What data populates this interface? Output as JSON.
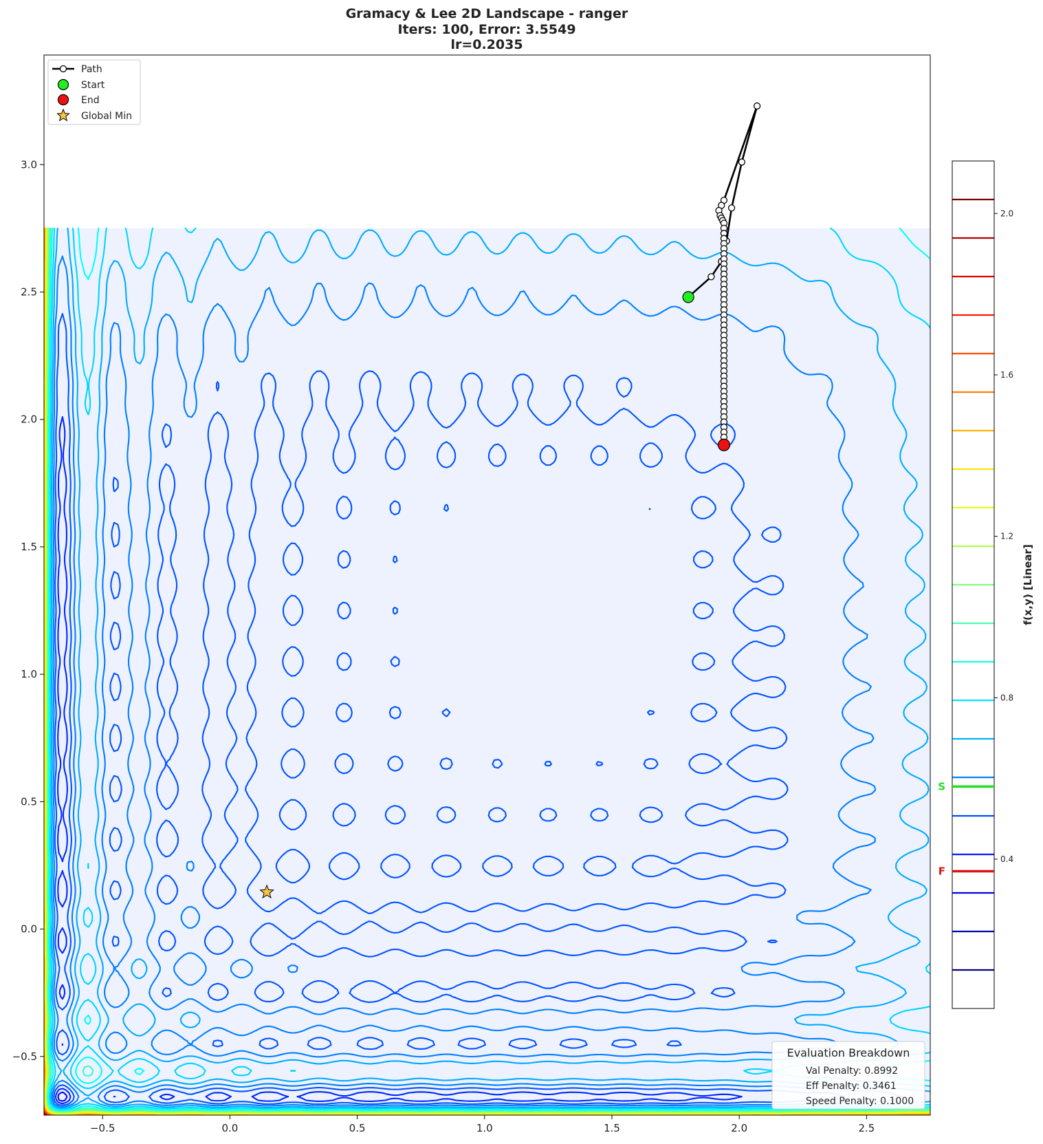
{
  "chart_data": {
    "type": "contour",
    "title_lines": [
      "Gramacy & Lee 2D Landscape - ranger",
      "Iters: 100, Error: 3.5549",
      "lr=0.2035"
    ],
    "xlabel": "",
    "ylabel": "",
    "xlim": [
      -0.73,
      2.75
    ],
    "ylim": [
      -0.73,
      3.43
    ],
    "surface_extent": {
      "x": [
        -0.73,
        2.75
      ],
      "y": [
        -0.73,
        2.75
      ]
    },
    "x_ticks": [
      -0.5,
      0.0,
      0.5,
      1.0,
      1.5,
      2.0,
      2.5
    ],
    "x_tick_labels": [
      "−0.5",
      "0.0",
      "0.5",
      "1.0",
      "1.5",
      "2.0",
      "2.5"
    ],
    "y_ticks": [
      -0.5,
      0.0,
      0.5,
      1.0,
      1.5,
      2.0,
      2.5,
      3.0
    ],
    "y_tick_labels": [
      "−0.5",
      "0.0",
      "0.5",
      "1.0",
      "1.5",
      "2.0",
      "2.5",
      "3.0"
    ],
    "grid": false,
    "legend": {
      "placement": "top-left",
      "entries": [
        {
          "key": "path",
          "label": "Path"
        },
        {
          "key": "start",
          "label": "Start"
        },
        {
          "key": "end",
          "label": "End"
        },
        {
          "key": "global_min",
          "label": "Global Min"
        }
      ]
    },
    "colorbar": {
      "label": "f(x,y) [Linear]",
      "range": [
        0.03,
        2.13
      ],
      "ticks": [
        0.4,
        0.8,
        1.2,
        1.6,
        2.0
      ],
      "tick_labels": [
        "0.4",
        "0.8",
        "1.2",
        "1.6",
        "2.0"
      ],
      "level_count": 21,
      "colormap": "jet",
      "markers": [
        {
          "letter": "S",
          "value": 0.58,
          "color": "#22dd22"
        },
        {
          "letter": "F",
          "value": 0.37,
          "color": "#dd1111"
        }
      ]
    },
    "start": [
      1.8,
      2.48
    ],
    "end": [
      1.94,
      1.9
    ],
    "global_min": [
      0.145,
      0.145
    ],
    "path": [
      [
        1.8,
        2.48
      ],
      [
        1.89,
        2.56
      ],
      [
        1.93,
        2.62
      ],
      [
        1.95,
        2.7
      ],
      [
        1.97,
        2.83
      ],
      [
        2.01,
        3.01
      ],
      [
        2.07,
        3.23
      ],
      [
        1.94,
        2.86
      ],
      [
        1.93,
        2.84
      ],
      [
        1.92,
        2.82
      ],
      [
        1.925,
        2.8
      ],
      [
        1.93,
        2.79
      ],
      [
        1.935,
        2.78
      ],
      [
        1.94,
        2.77
      ],
      [
        1.94,
        2.75
      ],
      [
        1.94,
        2.73
      ],
      [
        1.94,
        2.71
      ],
      [
        1.94,
        2.69
      ],
      [
        1.94,
        2.67
      ],
      [
        1.94,
        2.65
      ],
      [
        1.94,
        2.63
      ],
      [
        1.94,
        2.61
      ],
      [
        1.94,
        2.59
      ],
      [
        1.94,
        2.57
      ],
      [
        1.94,
        2.55
      ],
      [
        1.94,
        2.53
      ],
      [
        1.94,
        2.51
      ],
      [
        1.94,
        2.49
      ],
      [
        1.94,
        2.47
      ],
      [
        1.94,
        2.45
      ],
      [
        1.94,
        2.43
      ],
      [
        1.94,
        2.41
      ],
      [
        1.94,
        2.39
      ],
      [
        1.94,
        2.37
      ],
      [
        1.94,
        2.35
      ],
      [
        1.94,
        2.33
      ],
      [
        1.94,
        2.31
      ],
      [
        1.94,
        2.29
      ],
      [
        1.94,
        2.27
      ],
      [
        1.94,
        2.25
      ],
      [
        1.94,
        2.23
      ],
      [
        1.94,
        2.21
      ],
      [
        1.94,
        2.19
      ],
      [
        1.94,
        2.17
      ],
      [
        1.94,
        2.15
      ],
      [
        1.94,
        2.13
      ],
      [
        1.94,
        2.11
      ],
      [
        1.94,
        2.09
      ],
      [
        1.94,
        2.07
      ],
      [
        1.94,
        2.05
      ],
      [
        1.94,
        2.03
      ],
      [
        1.94,
        2.01
      ],
      [
        1.94,
        1.99
      ],
      [
        1.94,
        1.97
      ],
      [
        1.94,
        1.95
      ],
      [
        1.94,
        1.93
      ],
      [
        1.94,
        1.9
      ]
    ],
    "evaluation_breakdown": {
      "title": "Evaluation Breakdown",
      "items": [
        "Val Penalty: 0.8992",
        "Eff Penalty: 0.3461",
        "Speed Penalty: 0.1000"
      ]
    }
  }
}
